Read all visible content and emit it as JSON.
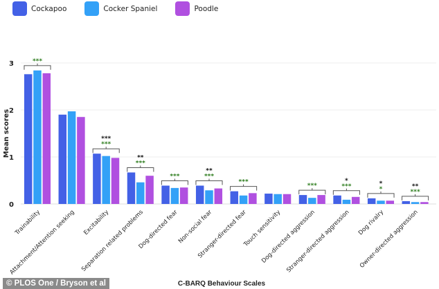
{
  "chart_data": {
    "type": "bar",
    "title": "",
    "xlabel": "C-BARQ Behaviour Scales",
    "ylabel": "Mean scores",
    "ylim": [
      0,
      3
    ],
    "yticks": [
      0,
      1,
      2,
      3
    ],
    "grid": true,
    "legend_position": "top-left",
    "categories": [
      "Trainability",
      "Attachment/Attention seeking",
      "Excitability",
      "Separation related problems",
      "Dog-directed fear",
      "Non-social fear",
      "Stranger-directed fear",
      "Touch sensitivity",
      "Dog-directed aggression",
      "Stranger-directed aggression",
      "Dog rivalry",
      "Owner-directed aggression"
    ],
    "series": [
      {
        "name": "Cockapoo",
        "color": "#4361e6",
        "values": [
          2.76,
          1.9,
          1.07,
          0.67,
          0.39,
          0.39,
          0.27,
          0.22,
          0.19,
          0.18,
          0.12,
          0.06
        ]
      },
      {
        "name": "Cocker Spaniel",
        "color": "#33a1f7",
        "values": [
          2.84,
          1.97,
          1.02,
          0.46,
          0.34,
          0.29,
          0.18,
          0.21,
          0.13,
          0.09,
          0.07,
          0.04
        ]
      },
      {
        "name": "Poodle",
        "color": "#b050e0",
        "values": [
          2.78,
          1.85,
          0.98,
          0.6,
          0.35,
          0.33,
          0.23,
          0.21,
          0.19,
          0.15,
          0.07,
          0.04
        ]
      }
    ],
    "significance": [
      {
        "black": "",
        "green": "***"
      },
      {
        "black": "",
        "green": ""
      },
      {
        "black": "***",
        "green": "***"
      },
      {
        "black": "**",
        "green": "***"
      },
      {
        "black": "",
        "green": "***"
      },
      {
        "black": "**",
        "green": "***"
      },
      {
        "black": "",
        "green": "***"
      },
      {
        "black": "",
        "green": ""
      },
      {
        "black": "",
        "green": "***"
      },
      {
        "black": "*",
        "green": "***"
      },
      {
        "black": "*",
        "green": "*"
      },
      {
        "black": "**",
        "green": "***"
      }
    ],
    "significance_colors": {
      "black": "#111111",
      "green": "#2e7d1e"
    }
  },
  "credit": "© PLOS One / Bryson et al"
}
